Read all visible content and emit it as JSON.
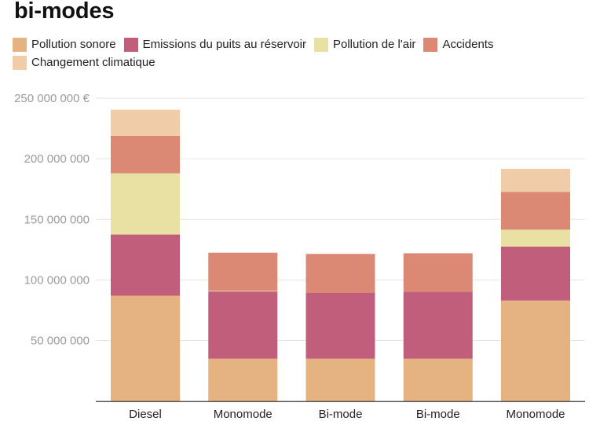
{
  "chart_data": {
    "type": "bar",
    "stacked": true,
    "title": "bi-modes",
    "xlabel": "",
    "ylabel": "",
    "ylim": [
      0,
      250000000
    ],
    "y_ticks": [
      {
        "value": 50000000,
        "label": "50 000 000"
      },
      {
        "value": 100000000,
        "label": "100 000 000"
      },
      {
        "value": 150000000,
        "label": "150 000 000"
      },
      {
        "value": 200000000,
        "label": "200 000 000"
      },
      {
        "value": 250000000,
        "label": "250 000 000 €"
      }
    ],
    "grid": true,
    "legend_position": "top-left",
    "categories": [
      "Diesel",
      "Monomode",
      "Bi-mode",
      "Bi-mode",
      "Monomode"
    ],
    "series": [
      {
        "name": "Pollution sonore",
        "color": "#e4b381",
        "values": [
          87000000,
          35000000,
          35000000,
          35000000,
          83000000
        ]
      },
      {
        "name": "Emissions du puits au réservoir",
        "color": "#c05e7b",
        "values": [
          50500000,
          55500000,
          54500000,
          55300000,
          44500000
        ]
      },
      {
        "name": "Pollution de l'air",
        "color": "#e8e1a3",
        "values": [
          50500000,
          500000,
          0,
          0,
          14000000
        ]
      },
      {
        "name": "Accidents",
        "color": "#db8874",
        "values": [
          31000000,
          31500000,
          32000000,
          31700000,
          31200000
        ]
      },
      {
        "name": "Changement climatique",
        "color": "#f0cca8",
        "values": [
          21500000,
          0,
          0,
          0,
          19000000
        ]
      }
    ]
  }
}
